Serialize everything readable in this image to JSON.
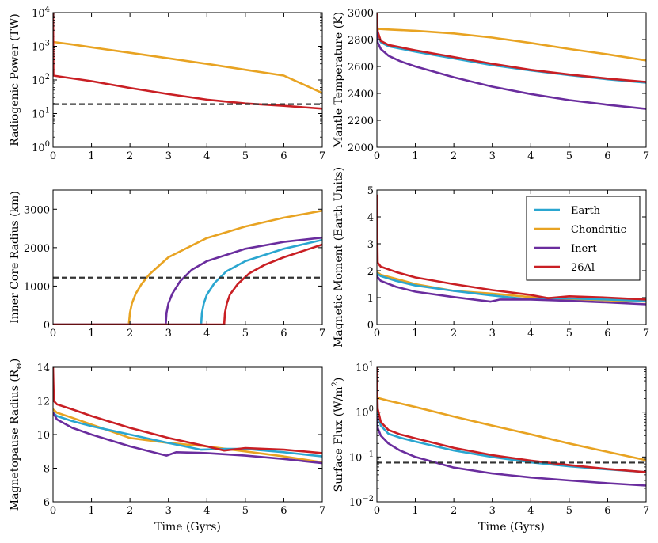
{
  "chart_data": [
    {
      "id": "radiogenic",
      "type": "line",
      "yscale": "log",
      "xlim": [
        0,
        7
      ],
      "ylim": [
        1,
        10000
      ],
      "xticks": [
        "0",
        "1",
        "2",
        "3",
        "4",
        "5",
        "6",
        "7"
      ],
      "yticks": [
        {
          "value": 1,
          "base": "10",
          "exp": "0"
        },
        {
          "value": 10,
          "base": "10",
          "exp": "1"
        },
        {
          "value": 100,
          "base": "10",
          "exp": "2"
        },
        {
          "value": 1000,
          "base": "10",
          "exp": "3"
        },
        {
          "value": 10000,
          "base": "10",
          "exp": "4"
        }
      ],
      "ylabel": "Radiogenic Power (TW)",
      "xlabel": "",
      "hline": 19,
      "series": [
        {
          "name": "Chondritic",
          "color": "#e8a322",
          "x": [
            0,
            0.5,
            1,
            2,
            3,
            4,
            5,
            6,
            7
          ],
          "y": [
            1350,
            1130,
            930,
            640,
            440,
            300,
            200,
            135,
            41
          ]
        },
        {
          "name": "26Al",
          "color": "#c91f24",
          "x": [
            0,
            0.01,
            0.3,
            1,
            2,
            3,
            4,
            5,
            6,
            7
          ],
          "y": [
            10000,
            135,
            120,
            92,
            58,
            38,
            26,
            20,
            17,
            14
          ]
        }
      ]
    },
    {
      "id": "mantle-temp",
      "type": "line",
      "yscale": "linear",
      "xlim": [
        0,
        7
      ],
      "ylim": [
        2000,
        3000
      ],
      "xticks": [
        "0",
        "1",
        "2",
        "3",
        "4",
        "5",
        "6",
        "7"
      ],
      "yticks": [
        {
          "value": 2000,
          "label": "2000"
        },
        {
          "value": 2200,
          "label": "2200"
        },
        {
          "value": 2400,
          "label": "2400"
        },
        {
          "value": 2600,
          "label": "2600"
        },
        {
          "value": 2800,
          "label": "2800"
        },
        {
          "value": 3000,
          "label": "3000"
        }
      ],
      "ylabel": "Mantle Temperature (K)",
      "xlabel": "",
      "series": [
        {
          "name": "Chondritic",
          "color": "#e8a322",
          "x": [
            0,
            0.3,
            1,
            2,
            3,
            4,
            5,
            6,
            7
          ],
          "y": [
            2880,
            2875,
            2865,
            2845,
            2815,
            2775,
            2730,
            2690,
            2645
          ]
        },
        {
          "name": "Earth",
          "color": "#2aa6d0",
          "x": [
            0,
            0.02,
            0.1,
            0.3,
            1,
            2,
            3,
            4,
            5,
            6,
            7
          ],
          "y": [
            3000,
            2850,
            2780,
            2750,
            2710,
            2660,
            2610,
            2570,
            2535,
            2505,
            2480
          ]
        },
        {
          "name": "26Al",
          "color": "#c91f24",
          "x": [
            0,
            0.02,
            0.1,
            0.3,
            1,
            2,
            3,
            4,
            5,
            6,
            7
          ],
          "y": [
            3000,
            2860,
            2790,
            2760,
            2720,
            2670,
            2620,
            2575,
            2540,
            2510,
            2485
          ]
        },
        {
          "name": "Inert",
          "color": "#6a2d9e",
          "x": [
            0,
            0.02,
            0.1,
            0.3,
            0.6,
            1,
            2,
            3,
            4,
            5,
            6,
            7
          ],
          "y": [
            2850,
            2780,
            2730,
            2680,
            2640,
            2600,
            2520,
            2450,
            2395,
            2350,
            2315,
            2285
          ]
        }
      ]
    },
    {
      "id": "inner-core",
      "type": "line",
      "yscale": "linear",
      "xlim": [
        0,
        7
      ],
      "ylim": [
        0,
        3500
      ],
      "xticks": [
        "0",
        "1",
        "2",
        "3",
        "4",
        "5",
        "6",
        "7"
      ],
      "yticks": [
        {
          "value": 0,
          "label": "0"
        },
        {
          "value": 1000,
          "label": "1000"
        },
        {
          "value": 2000,
          "label": "2000"
        },
        {
          "value": 3000,
          "label": "3000"
        }
      ],
      "ylabel": "Inner Core Radius (km)",
      "xlabel": "",
      "hline": 1220,
      "series": [
        {
          "name": "Chondritic",
          "color": "#e8a322",
          "x": [
            0,
            1.97,
            2.0,
            2.05,
            2.15,
            2.3,
            2.5,
            3,
            4,
            5,
            6,
            7
          ],
          "y": [
            0,
            0,
            300,
            550,
            800,
            1050,
            1300,
            1750,
            2250,
            2550,
            2780,
            2960
          ]
        },
        {
          "name": "Inert",
          "color": "#6a2d9e",
          "x": [
            0,
            2.93,
            2.95,
            3.0,
            3.1,
            3.3,
            3.6,
            4,
            5,
            6,
            7
          ],
          "y": [
            0,
            0,
            300,
            550,
            800,
            1120,
            1420,
            1650,
            1970,
            2150,
            2260
          ]
        },
        {
          "name": "Earth",
          "color": "#2aa6d0",
          "x": [
            0,
            3.85,
            3.87,
            3.92,
            4.0,
            4.2,
            4.5,
            5,
            6,
            7
          ],
          "y": [
            0,
            0,
            300,
            550,
            780,
            1080,
            1380,
            1650,
            1970,
            2200
          ]
        },
        {
          "name": "26Al",
          "color": "#c91f24",
          "x": [
            0,
            4.45,
            4.47,
            4.52,
            4.6,
            4.8,
            5.1,
            5.5,
            6,
            7
          ],
          "y": [
            0,
            0,
            300,
            550,
            780,
            1050,
            1330,
            1550,
            1750,
            2080
          ]
        }
      ]
    },
    {
      "id": "magnetic-moment",
      "type": "line",
      "yscale": "linear",
      "xlim": [
        0,
        7
      ],
      "ylim": [
        0,
        5
      ],
      "xticks": [
        "0",
        "1",
        "2",
        "3",
        "4",
        "5",
        "6",
        "7"
      ],
      "yticks": [
        {
          "value": 0,
          "label": "0"
        },
        {
          "value": 1,
          "label": "1"
        },
        {
          "value": 2,
          "label": "2"
        },
        {
          "value": 3,
          "label": "3"
        },
        {
          "value": 4,
          "label": "4"
        },
        {
          "value": 5,
          "label": "5"
        }
      ],
      "ylabel": "Magnetic Moment (Earth Units)",
      "xlabel": "",
      "legend": {
        "position": "top-right",
        "entries": [
          "Earth",
          "Chondritic",
          "Inert",
          "26Al"
        ]
      },
      "series": [
        {
          "name": "Chondritic",
          "color": "#e8a322",
          "x": [
            0,
            0.1,
            0.5,
            1,
            2,
            3,
            4,
            5,
            6,
            7
          ],
          "y": [
            1.95,
            1.85,
            1.7,
            1.5,
            1.25,
            1.15,
            1.02,
            0.95,
            0.9,
            0.85
          ]
        },
        {
          "name": "Earth",
          "color": "#2aa6d0",
          "x": [
            0,
            0.1,
            0.5,
            1,
            2,
            3,
            3.85,
            4.5,
            5,
            6,
            7
          ],
          "y": [
            1.9,
            1.8,
            1.62,
            1.45,
            1.25,
            1.08,
            0.95,
            0.98,
            0.97,
            0.93,
            0.88
          ]
        },
        {
          "name": "Inert",
          "color": "#6a2d9e",
          "x": [
            0,
            0.1,
            0.5,
            1,
            2,
            2.95,
            3.2,
            4,
            5,
            6,
            7
          ],
          "y": [
            1.8,
            1.62,
            1.4,
            1.22,
            1.02,
            0.85,
            0.93,
            0.93,
            0.88,
            0.82,
            0.75
          ]
        },
        {
          "name": "26Al",
          "color": "#c91f24",
          "x": [
            0,
            0.02,
            0.1,
            0.5,
            1,
            2,
            3,
            4,
            4.45,
            5,
            6,
            7
          ],
          "y": [
            4.8,
            2.3,
            2.15,
            1.95,
            1.75,
            1.5,
            1.28,
            1.1,
            0.98,
            1.05,
            1.0,
            0.93
          ]
        }
      ]
    },
    {
      "id": "magnetopause",
      "type": "line",
      "yscale": "linear",
      "xlim": [
        0,
        7
      ],
      "ylim": [
        6,
        14
      ],
      "xticks": [
        "0",
        "1",
        "2",
        "3",
        "4",
        "5",
        "6",
        "7"
      ],
      "yticks": [
        {
          "value": 6,
          "label": "6"
        },
        {
          "value": 8,
          "label": "8"
        },
        {
          "value": 10,
          "label": "10"
        },
        {
          "value": 12,
          "label": "12"
        },
        {
          "value": 14,
          "label": "14"
        }
      ],
      "ylabel_main": "Magnetopause Radius (R",
      "ylabel_sub": "⊕",
      "ylabel_end": ")",
      "xlabel": "Time (Gyrs)",
      "series": [
        {
          "name": "Chondritic",
          "color": "#e8a322",
          "x": [
            0,
            0.1,
            0.5,
            1,
            2,
            3,
            4,
            5,
            6,
            7
          ],
          "y": [
            11.5,
            11.3,
            11.0,
            10.6,
            9.8,
            9.5,
            9.3,
            9.0,
            8.7,
            8.35
          ]
        },
        {
          "name": "Earth",
          "color": "#2aa6d0",
          "x": [
            0,
            0.1,
            0.5,
            1,
            2,
            3,
            3.85,
            4.5,
            5,
            6,
            7
          ],
          "y": [
            11.3,
            11.1,
            10.8,
            10.5,
            10.0,
            9.5,
            9.1,
            9.15,
            9.15,
            8.95,
            8.7
          ]
        },
        {
          "name": "Inert",
          "color": "#6a2d9e",
          "x": [
            0,
            0.1,
            0.5,
            1,
            2,
            2.95,
            3.2,
            4,
            5,
            6,
            7
          ],
          "y": [
            11.3,
            10.9,
            10.4,
            10.0,
            9.3,
            8.75,
            8.95,
            8.9,
            8.75,
            8.55,
            8.3
          ]
        },
        {
          "name": "26Al",
          "color": "#c91f24",
          "x": [
            0,
            0.02,
            0.1,
            0.5,
            1,
            2,
            3,
            4,
            4.45,
            5,
            6,
            7
          ],
          "y": [
            14,
            12.0,
            11.8,
            11.5,
            11.1,
            10.4,
            9.8,
            9.3,
            9.05,
            9.2,
            9.1,
            8.9
          ]
        }
      ]
    },
    {
      "id": "surface-flux",
      "type": "line",
      "yscale": "log",
      "xlim": [
        0,
        7
      ],
      "ylim": [
        0.01,
        10
      ],
      "xticks": [
        "0",
        "1",
        "2",
        "3",
        "4",
        "5",
        "6",
        "7"
      ],
      "yticks": [
        {
          "value": 0.01,
          "base": "10",
          "exp": "−2"
        },
        {
          "value": 0.1,
          "base": "10",
          "exp": "−1"
        },
        {
          "value": 1,
          "base": "10",
          "exp": "0"
        },
        {
          "value": 10,
          "base": "10",
          "exp": "1"
        }
      ],
      "ylabel_main": "Surface Flux (W/m",
      "ylabel_sup": "2",
      "ylabel_end": ")",
      "xlabel": "Time (Gyrs)",
      "hline": 0.075,
      "series": [
        {
          "name": "Chondritic",
          "color": "#e8a322",
          "x": [
            0,
            0.3,
            1,
            2,
            3,
            4,
            5,
            6,
            7
          ],
          "y": [
            2.1,
            1.8,
            1.3,
            0.8,
            0.5,
            0.32,
            0.2,
            0.13,
            0.085
          ]
        },
        {
          "name": "Earth",
          "color": "#2aa6d0",
          "x": [
            0,
            0.02,
            0.1,
            0.3,
            0.6,
            1,
            2,
            3,
            4,
            5,
            6,
            7
          ],
          "y": [
            10,
            1.0,
            0.5,
            0.33,
            0.27,
            0.22,
            0.14,
            0.1,
            0.076,
            0.062,
            0.053,
            0.046
          ]
        },
        {
          "name": "26Al",
          "color": "#c91f24",
          "x": [
            0,
            0.02,
            0.1,
            0.3,
            0.6,
            1,
            2,
            3,
            4,
            5,
            6,
            7
          ],
          "y": [
            10,
            1.2,
            0.6,
            0.4,
            0.32,
            0.26,
            0.16,
            0.11,
            0.083,
            0.066,
            0.054,
            0.046
          ]
        },
        {
          "name": "Inert",
          "color": "#6a2d9e",
          "x": [
            0,
            0.02,
            0.1,
            0.3,
            0.6,
            1,
            2,
            3,
            4,
            5,
            6,
            7
          ],
          "y": [
            0.75,
            0.45,
            0.3,
            0.2,
            0.14,
            0.1,
            0.058,
            0.043,
            0.035,
            0.03,
            0.026,
            0.023
          ]
        }
      ]
    }
  ]
}
